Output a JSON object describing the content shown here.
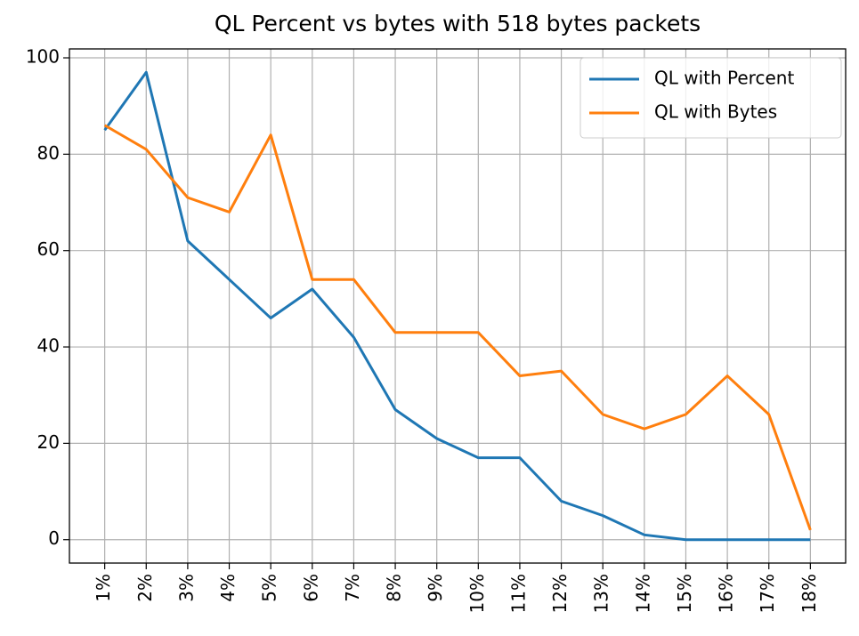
{
  "chart_data": {
    "type": "line",
    "title": "QL Percent vs bytes with 518 bytes packets",
    "categories": [
      "1%",
      "2%",
      "3%",
      "4%",
      "5%",
      "6%",
      "7%",
      "8%",
      "9%",
      "10%",
      "11%",
      "12%",
      "13%",
      "14%",
      "15%",
      "16%",
      "17%",
      "18%"
    ],
    "series": [
      {
        "name": "QL with Percent",
        "color": "#1f77b4",
        "values": [
          85,
          97,
          62,
          54,
          46,
          52,
          42,
          27,
          21,
          17,
          17,
          8,
          5,
          1,
          0,
          0,
          0,
          0
        ]
      },
      {
        "name": "QL with Bytes",
        "color": "#ff7f0e",
        "values": [
          86,
          81,
          71,
          68,
          84,
          54,
          54,
          43,
          43,
          43,
          34,
          35,
          26,
          23,
          26,
          34,
          26,
          2
        ]
      }
    ],
    "ylim": [
      -4.85,
      101.85
    ],
    "yticks": [
      0,
      20,
      40,
      60,
      80,
      100
    ],
    "grid": true,
    "legend": "upper right"
  }
}
